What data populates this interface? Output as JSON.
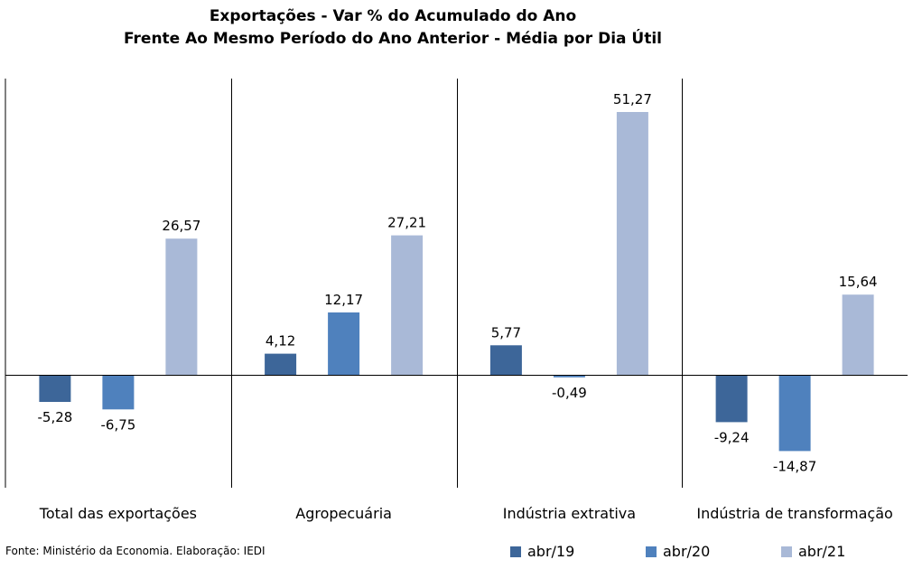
{
  "title_line1": "Exportações - Var % do Acumulado do Ano",
  "title_line2": "Frente Ao Mesmo Período do Ano Anterior - Média por Dia Útil",
  "source": "Fonte: Ministério da Economia. Elaboração: IEDI",
  "chart_data": {
    "type": "bar",
    "title": "Exportações - Var % do Acumulado do Ano Frente Ao Mesmo Período do Ano Anterior - Média por Dia Útil",
    "categories": [
      "Total das exportações",
      "Agropecuária",
      "Indústria extrativa",
      "Indústria de transformação"
    ],
    "series": [
      {
        "name": "abr/19",
        "color": "#3d6699",
        "values": [
          -5.28,
          4.12,
          5.77,
          -9.24
        ],
        "labels": [
          "-5,28",
          "4,12",
          "5,77",
          "-9,24"
        ]
      },
      {
        "name": "abr/20",
        "color": "#4f81bd",
        "values": [
          -6.75,
          12.17,
          -0.49,
          -14.87
        ],
        "labels": [
          "-6,75",
          "12,17",
          "-0,49",
          "-14,87"
        ]
      },
      {
        "name": "abr/21",
        "color": "#a9b9d7",
        "values": [
          26.57,
          27.21,
          51.27,
          15.64
        ],
        "labels": [
          "26,57",
          "27,21",
          "51,27",
          "15,64"
        ]
      }
    ],
    "legend_position": "bottom-right",
    "grid": false
  }
}
